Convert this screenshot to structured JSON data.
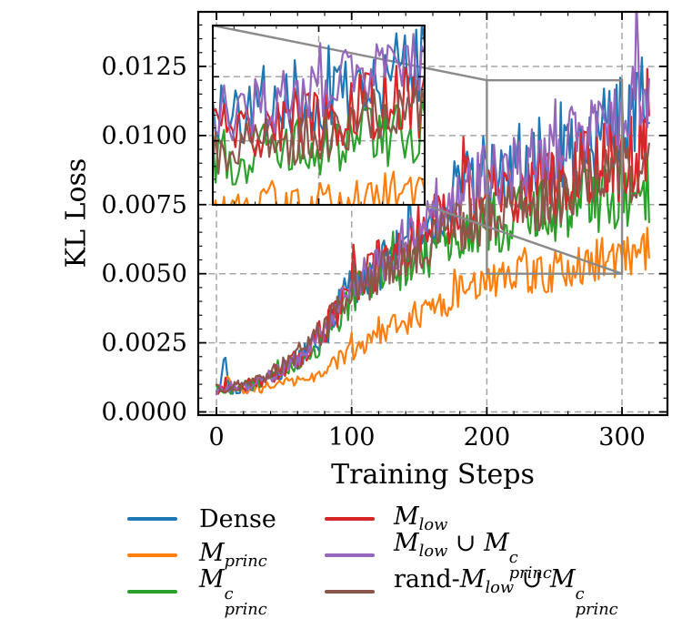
{
  "chart_data": {
    "type": "line",
    "title": "",
    "xlabel": "Training Steps",
    "ylabel": "KL Loss",
    "xlim": [
      -13.5,
      333.6
    ],
    "ylim": [
      -0.000115,
      0.014475
    ],
    "x_ticks": [
      0,
      100,
      200,
      300
    ],
    "x_tick_labels": [
      "0",
      "100",
      "200",
      "300"
    ],
    "x_minor_step": 20,
    "y_ticks": [
      0,
      0.0025,
      0.005,
      0.0075,
      0.01,
      0.0125
    ],
    "y_tick_labels": [
      "0.0000",
      "0.0025",
      "0.0050",
      "0.0075",
      "0.0100",
      "0.0125"
    ],
    "y_minor_step": 0.0005,
    "grid": true,
    "grid_style": "dashed",
    "legend_position": "below plot, 2 columns",
    "x_data_range": [
      0,
      320
    ],
    "anchor_step": 20,
    "colors": {
      "grid": "#a6a6a6",
      "indicator": "#8a8a8a",
      "spine": "#000000",
      "background": "#ffffff"
    },
    "inset": {
      "description": "zoomed view of region x 200-300, y 0.005-0.012",
      "x_range": [
        200,
        300
      ],
      "y_range": [
        0.005,
        0.012
      ],
      "x_grid": [
        250
      ],
      "y_grid": [
        0.0075,
        0.01
      ],
      "x_minor_step": 10,
      "y_minor_step": 0.0005
    },
    "series": [
      {
        "id": "dense",
        "label": "Dense",
        "color": "#1f77b4",
        "seed": 101,
        "noise": 0.16,
        "label_parts": [
          {
            "kind": "plain",
            "text": "Dense"
          }
        ],
        "trend": [
          0.0008,
          0.0009,
          0.0012,
          0.0018,
          0.0028,
          0.0046,
          0.0053,
          0.006,
          0.0067,
          0.0078,
          0.0088,
          0.0089,
          0.0092,
          0.0095,
          0.01,
          0.0108,
          0.0116
        ],
        "spikes": [
          {
            "x": 6,
            "dy": 0.0013,
            "w": 1.5
          },
          {
            "x": 143,
            "dy": 0.0014,
            "w": 1.6
          }
        ]
      },
      {
        "id": "m-princ",
        "label": "M_princ",
        "color": "#ff7f0e",
        "seed": 202,
        "noise": 0.13,
        "label_parts": [
          {
            "kind": "var",
            "text": "M"
          },
          {
            "kind": "sub",
            "text": "princ"
          }
        ],
        "trend": [
          0.0008,
          0.0008,
          0.0009,
          0.0011,
          0.0015,
          0.0022,
          0.0028,
          0.0033,
          0.0038,
          0.0043,
          0.0048,
          0.005,
          0.005,
          0.0052,
          0.0055,
          0.0057,
          0.006
        ],
        "spikes": [
          {
            "x": 9,
            "dy": 0.0005,
            "w": 2
          }
        ]
      },
      {
        "id": "m-princ-c",
        "label": "M^c_princ",
        "color": "#2ca02c",
        "seed": 303,
        "noise": 0.15,
        "label_parts": [
          {
            "kind": "var",
            "text": "M"
          },
          {
            "kind": "subsup",
            "sup": "c",
            "sub": "princ"
          }
        ],
        "trend": [
          0.0008,
          0.0009,
          0.0012,
          0.0017,
          0.0026,
          0.0042,
          0.0048,
          0.0054,
          0.0059,
          0.0064,
          0.0068,
          0.007,
          0.0072,
          0.0074,
          0.0077,
          0.0079,
          0.008
        ],
        "spikes": []
      },
      {
        "id": "m-low",
        "label": "M_low",
        "color": "#d62728",
        "seed": 404,
        "noise": 0.16,
        "label_parts": [
          {
            "kind": "var",
            "text": "M"
          },
          {
            "kind": "sub",
            "text": "low"
          }
        ],
        "trend": [
          0.0008,
          0.0009,
          0.0013,
          0.0019,
          0.003,
          0.0046,
          0.0054,
          0.0061,
          0.0067,
          0.0072,
          0.0076,
          0.0078,
          0.0082,
          0.0085,
          0.0088,
          0.0092,
          0.0097
        ],
        "spikes": [
          {
            "x": 184,
            "dy": 0.0017,
            "w": 1.8
          }
        ]
      },
      {
        "id": "m-low-union-m-princ-c",
        "label": "M_low ∪ M^c_princ",
        "color": "#9467bd",
        "seed": 505,
        "noise": 0.13,
        "label_parts": [
          {
            "kind": "var",
            "text": "M"
          },
          {
            "kind": "sub",
            "text": "low"
          },
          {
            "kind": "plain",
            "text": " ∪ "
          },
          {
            "kind": "var",
            "text": "M"
          },
          {
            "kind": "subsup",
            "sup": "c",
            "sub": "princ"
          }
        ],
        "trend": [
          0.0008,
          0.0009,
          0.0013,
          0.0019,
          0.0029,
          0.0046,
          0.0054,
          0.0062,
          0.0069,
          0.0078,
          0.0086,
          0.0088,
          0.0092,
          0.0096,
          0.0101,
          0.0106,
          0.0112
        ],
        "spikes": [
          {
            "x": 311,
            "dy": 0.0026,
            "w": 1.6
          }
        ]
      },
      {
        "id": "rand-m-low-union-m-princ-c",
        "label": "rand-M_low ∪ M^c_princ",
        "color": "#8c564b",
        "seed": 606,
        "noise": 0.14,
        "label_parts": [
          {
            "kind": "plain",
            "text": "rand-"
          },
          {
            "kind": "var",
            "text": "M"
          },
          {
            "kind": "sub",
            "text": "low"
          },
          {
            "kind": "plain",
            "text": " ∪ "
          },
          {
            "kind": "var",
            "text": "M"
          },
          {
            "kind": "subsup",
            "sup": "c",
            "sub": "princ"
          }
        ],
        "trend": [
          0.0008,
          0.001,
          0.0014,
          0.0021,
          0.003,
          0.0044,
          0.005,
          0.0056,
          0.0062,
          0.0067,
          0.0072,
          0.0074,
          0.0077,
          0.008,
          0.0084,
          0.0087,
          0.009
        ],
        "spikes": []
      }
    ]
  }
}
